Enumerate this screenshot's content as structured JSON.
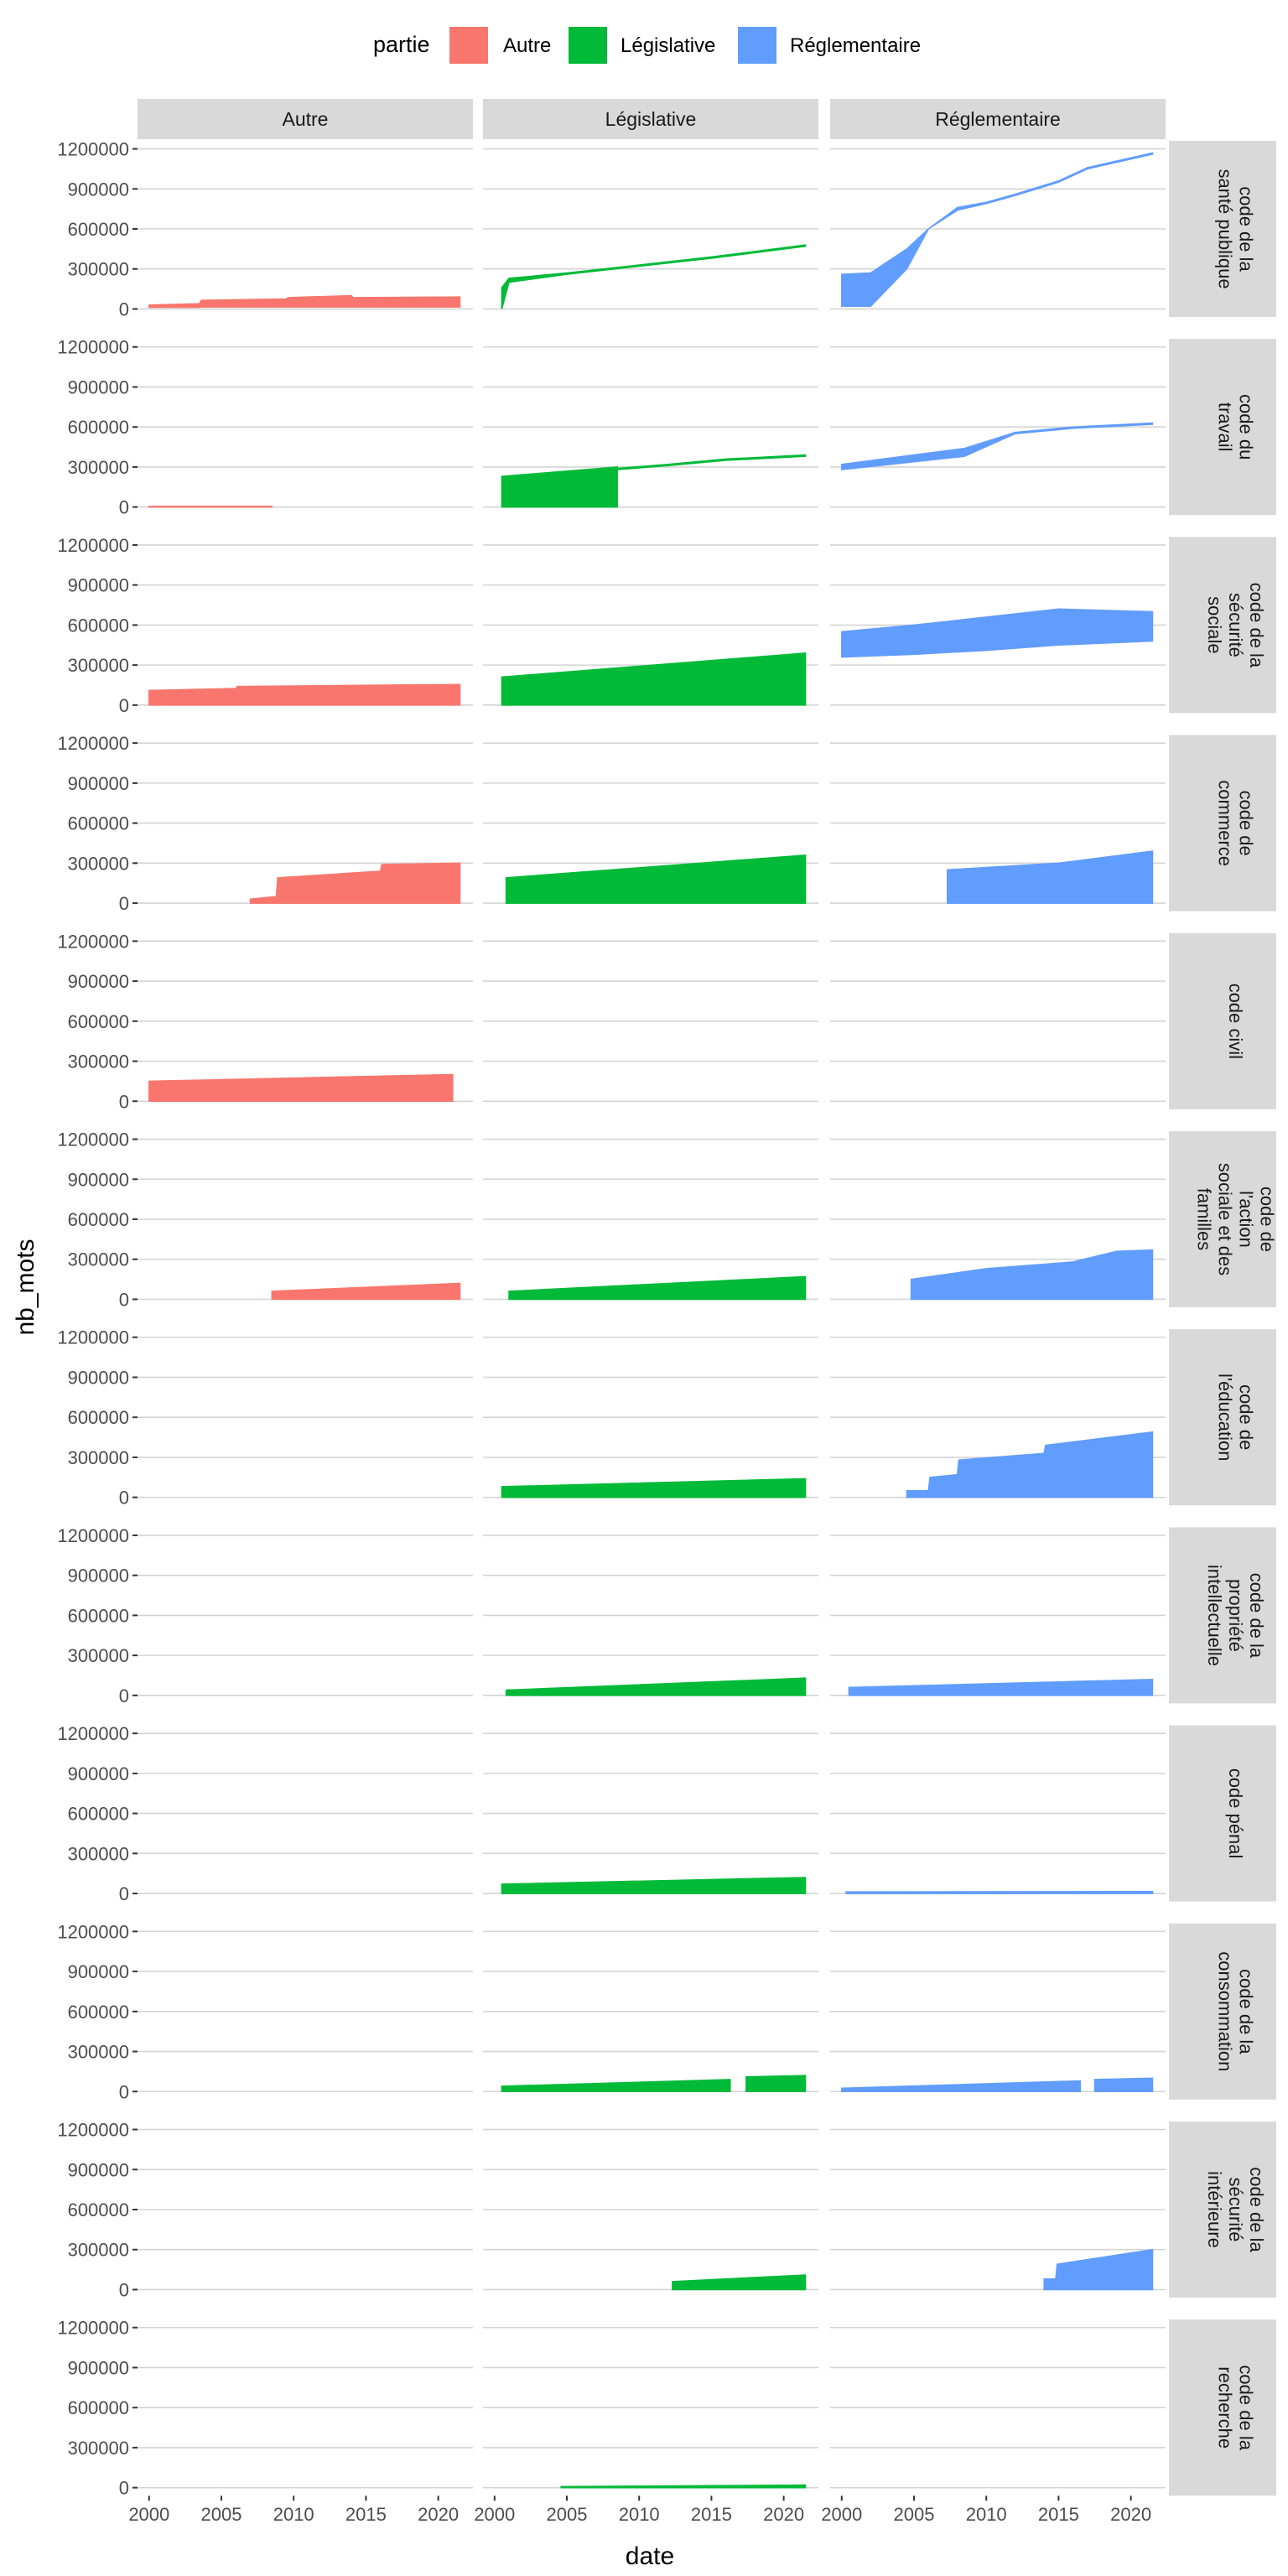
{
  "chart_data": {
    "type": "area",
    "xlabel": "date",
    "ylabel": "nb_mots",
    "legend": {
      "title": "partie",
      "placement": "top",
      "items": [
        {
          "name": "Autre",
          "color": "#F8766D"
        },
        {
          "name": "Législative",
          "color": "#00BA38"
        },
        {
          "name": "Réglementaire",
          "color": "#619CFF"
        }
      ]
    },
    "columns": [
      "Autre",
      "Législative",
      "Réglementaire"
    ],
    "x_ticks": [
      "2000",
      "2005",
      "2010",
      "2015",
      "2020"
    ],
    "x_range": [
      1999.2,
      2022.4
    ],
    "y_ticks": [
      "0",
      "300000",
      "600000",
      "900000",
      "1200000"
    ],
    "ylim": [
      -60000,
      1260000
    ],
    "grid": true,
    "rows": [
      {
        "label": [
          "code de la",
          "santé publique"
        ],
        "panels": {
          "Autre": {
            "segments": [
              {
                "x": [
                  2000,
                  2003.5,
                  2003.6,
                  2009.5,
                  2009.6,
                  2014,
                  2014.1,
                  2021.5
                ],
                "upper": [
                  30000,
                  40000,
                  65000,
                  75000,
                  85000,
                  100000,
                  85000,
                  90000
                ],
                "lower": [
                  12000,
                  12000,
                  15000,
                  15000,
                  15000,
                  15000,
                  15000,
                  15000
                ]
              }
            ]
          },
          "Législative": {
            "segments": [
              {
                "x": [
                  2000.5,
                  2001,
                  2005,
                  2010,
                  2015,
                  2021.5
                ],
                "upper": [
                  160000,
                  230000,
                  270000,
                  330000,
                  390000,
                  480000
                ],
                "lower": [
                  0,
                  200000,
                  260000,
                  320000,
                  380000,
                  470000
                ]
              }
            ]
          },
          "Réglementaire": {
            "segments": [
              {
                "x": [
                  2000,
                  2002,
                  2004.5,
                  2006,
                  2008,
                  2010,
                  2012,
                  2015,
                  2017,
                  2021.5
                ],
                "upper": [
                  260000,
                  270000,
                  450000,
                  600000,
                  760000,
                  800000,
                  860000,
                  960000,
                  1060000,
                  1170000
                ],
                "lower": [
                  20000,
                  20000,
                  300000,
                  600000,
                  740000,
                  790000,
                  850000,
                  950000,
                  1050000,
                  1160000
                ]
              }
            ]
          }
        }
      },
      {
        "label": [
          "code du",
          "travail"
        ],
        "panels": {
          "Autre": {
            "segments": [
              {
                "x": [
                  2000,
                  2008.5
                ],
                "upper": [
                  5000,
                  5000
                ],
                "lower": [
                  0,
                  0
                ]
              }
            ]
          },
          "Législative": {
            "segments": [
              {
                "x": [
                  2000.5,
                  2008.5
                ],
                "upper": [
                  230000,
                  300000
                ],
                "lower": [
                  0,
                  0
                ]
              },
              {
                "x": [
                  2008.5,
                  2012,
                  2016,
                  2021.5
                ],
                "upper": [
                  290000,
                  320000,
                  360000,
                  390000
                ],
                "lower": [
                  280000,
                  310000,
                  350000,
                  380000
                ]
              }
            ]
          },
          "Réglementaire": {
            "segments": [
              {
                "x": [
                  2000,
                  2008.5,
                  2012,
                  2016,
                  2021.5
                ],
                "upper": [
                  320000,
                  440000,
                  560000,
                  600000,
                  630000
                ],
                "lower": [
                  280000,
                  380000,
                  550000,
                  590000,
                  620000
                ]
              }
            ]
          }
        }
      },
      {
        "label": [
          "code de la",
          "sécurité",
          "sociale"
        ],
        "panels": {
          "Autre": {
            "segments": [
              {
                "x": [
                  2000,
                  2006,
                  2006.1,
                  2021.5
                ],
                "upper": [
                  110000,
                  125000,
                  140000,
                  155000
                ],
                "lower": [
                  0,
                  0,
                  0,
                  0
                ]
              }
            ]
          },
          "Législative": {
            "segments": [
              {
                "x": [
                  2000.5,
                  2021.5
                ],
                "upper": [
                  210000,
                  390000
                ],
                "lower": [
                  0,
                  0
                ]
              }
            ]
          },
          "Réglementaire": {
            "segments": [
              {
                "x": [
                  2000,
                  2005,
                  2010,
                  2015,
                  2021.5
                ],
                "upper": [
                  550000,
                  600000,
                  660000,
                  720000,
                  700000
                ],
                "lower": [
                  360000,
                  380000,
                  410000,
                  450000,
                  480000
                ]
              }
            ]
          }
        }
      },
      {
        "label": [
          "code de",
          "commerce"
        ],
        "panels": {
          "Autre": {
            "segments": [
              {
                "x": [
                  2007,
                  2008.8,
                  2008.9,
                  2016,
                  2016.1,
                  2021.5
                ],
                "upper": [
                  30000,
                  50000,
                  190000,
                  240000,
                  290000,
                  300000
                ],
                "lower": [
                  0,
                  0,
                  0,
                  0,
                  0,
                  0
                ]
              }
            ]
          },
          "Législative": {
            "segments": [
              {
                "x": [
                  2000.8,
                  2021.5
                ],
                "upper": [
                  190000,
                  360000
                ],
                "lower": [
                  0,
                  0
                ]
              }
            ]
          },
          "Réglementaire": {
            "segments": [
              {
                "x": [
                  2007.3,
                  2015,
                  2021.5
                ],
                "upper": [
                  250000,
                  300000,
                  390000
                ],
                "lower": [
                  0,
                  0,
                  0
                ]
              }
            ]
          }
        }
      },
      {
        "label": [
          "code civil"
        ],
        "panels": {
          "Autre": {
            "segments": [
              {
                "x": [
                  2000,
                  2021
                ],
                "upper": [
                  150000,
                  200000
                ],
                "lower": [
                  0,
                  0
                ]
              }
            ]
          },
          "Législative": {
            "segments": []
          },
          "Réglementaire": {
            "segments": []
          }
        }
      },
      {
        "label": [
          "code de",
          "l'action",
          "sociale et des",
          "familles"
        ],
        "panels": {
          "Autre": {
            "segments": [
              {
                "x": [
                  2008.5,
                  2021.5
                ],
                "upper": [
                  60000,
                  120000
                ],
                "lower": [
                  0,
                  0
                ]
              }
            ]
          },
          "Législative": {
            "segments": [
              {
                "x": [
                  2001,
                  2021.5
                ],
                "upper": [
                  60000,
                  170000
                ],
                "lower": [
                  0,
                  0
                ]
              }
            ]
          },
          "Réglementaire": {
            "segments": [
              {
                "x": [
                  2004.8,
                  2010,
                  2016,
                  2019,
                  2021.5
                ],
                "upper": [
                  150000,
                  230000,
                  280000,
                  360000,
                  370000
                ],
                "lower": [
                  0,
                  0,
                  0,
                  0,
                  0
                ]
              }
            ]
          }
        }
      },
      {
        "label": [
          "code de",
          "l'éducation"
        ],
        "panels": {
          "Autre": {
            "segments": []
          },
          "Législative": {
            "segments": [
              {
                "x": [
                  2000.5,
                  2021.5
                ],
                "upper": [
                  80000,
                  140000
                ],
                "lower": [
                  0,
                  0
                ]
              }
            ]
          },
          "Réglementaire": {
            "segments": [
              {
                "x": [
                  2004.5,
                  2006,
                  2006.1,
                  2008,
                  2008.1,
                  2014,
                  2014.1,
                  2021.5
                ],
                "upper": [
                  50000,
                  50000,
                  150000,
                  170000,
                  280000,
                  330000,
                  390000,
                  490000
                ],
                "lower": [
                  0,
                  0,
                  0,
                  0,
                  0,
                  0,
                  0,
                  0
                ]
              }
            ]
          }
        }
      },
      {
        "label": [
          "code de la",
          "propriété",
          "intellectuelle"
        ],
        "panels": {
          "Autre": {
            "segments": []
          },
          "Législative": {
            "segments": [
              {
                "x": [
                  2000.8,
                  2021.5
                ],
                "upper": [
                  40000,
                  130000
                ],
                "lower": [
                  0,
                  0
                ]
              }
            ]
          },
          "Réglementaire": {
            "segments": [
              {
                "x": [
                  2000.5,
                  2021.5
                ],
                "upper": [
                  60000,
                  120000
                ],
                "lower": [
                  0,
                  0
                ]
              }
            ]
          }
        }
      },
      {
        "label": [
          "code pénal"
        ],
        "panels": {
          "Autre": {
            "segments": []
          },
          "Législative": {
            "segments": [
              {
                "x": [
                  2000.5,
                  2021.5
                ],
                "upper": [
                  70000,
                  120000
                ],
                "lower": [
                  0,
                  0
                ]
              }
            ]
          },
          "Réglementaire": {
            "segments": [
              {
                "x": [
                  2000.3,
                  2021.5
                ],
                "upper": [
                  12000,
                  14000
                ],
                "lower": [
                  0,
                  0
                ]
              }
            ]
          }
        }
      },
      {
        "label": [
          "code de la",
          "consommation"
        ],
        "panels": {
          "Autre": {
            "segments": []
          },
          "Législative": {
            "segments": [
              {
                "x": [
                  2000.5,
                  2016.3
                ],
                "upper": [
                  40000,
                  90000
                ],
                "lower": [
                  0,
                  0
                ]
              },
              {
                "x": [
                  2017.4,
                  2021.5
                ],
                "upper": [
                  110000,
                  120000
                ],
                "lower": [
                  0,
                  0
                ]
              }
            ]
          },
          "Réglementaire": {
            "segments": [
              {
                "x": [
                  2000,
                  2016.5
                ],
                "upper": [
                  25000,
                  80000
                ],
                "lower": [
                  0,
                  0
                ]
              },
              {
                "x": [
                  2017.5,
                  2021.5
                ],
                "upper": [
                  90000,
                  100000
                ],
                "lower": [
                  0,
                  0
                ]
              }
            ]
          }
        }
      },
      {
        "label": [
          "code de la",
          "sécurité",
          "intérieure"
        ],
        "panels": {
          "Autre": {
            "segments": []
          },
          "Législative": {
            "segments": [
              {
                "x": [
                  2012.3,
                  2021.5
                ],
                "upper": [
                  60000,
                  110000
                ],
                "lower": [
                  0,
                  0
                ]
              }
            ]
          },
          "Réglementaire": {
            "segments": [
              {
                "x": [
                  2014,
                  2014.8,
                  2014.9,
                  2021.5
                ],
                "upper": [
                  80000,
                  80000,
                  190000,
                  300000
                ],
                "lower": [
                  0,
                  0,
                  0,
                  0
                ]
              }
            ]
          }
        }
      },
      {
        "label": [
          "code de la",
          "recherche"
        ],
        "panels": {
          "Autre": {
            "segments": []
          },
          "Législative": {
            "segments": [
              {
                "x": [
                  2004.6,
                  2021.5
                ],
                "upper": [
                  8000,
                  20000
                ],
                "lower": [
                  0,
                  0
                ]
              }
            ]
          },
          "Réglementaire": {
            "segments": []
          }
        }
      }
    ]
  }
}
